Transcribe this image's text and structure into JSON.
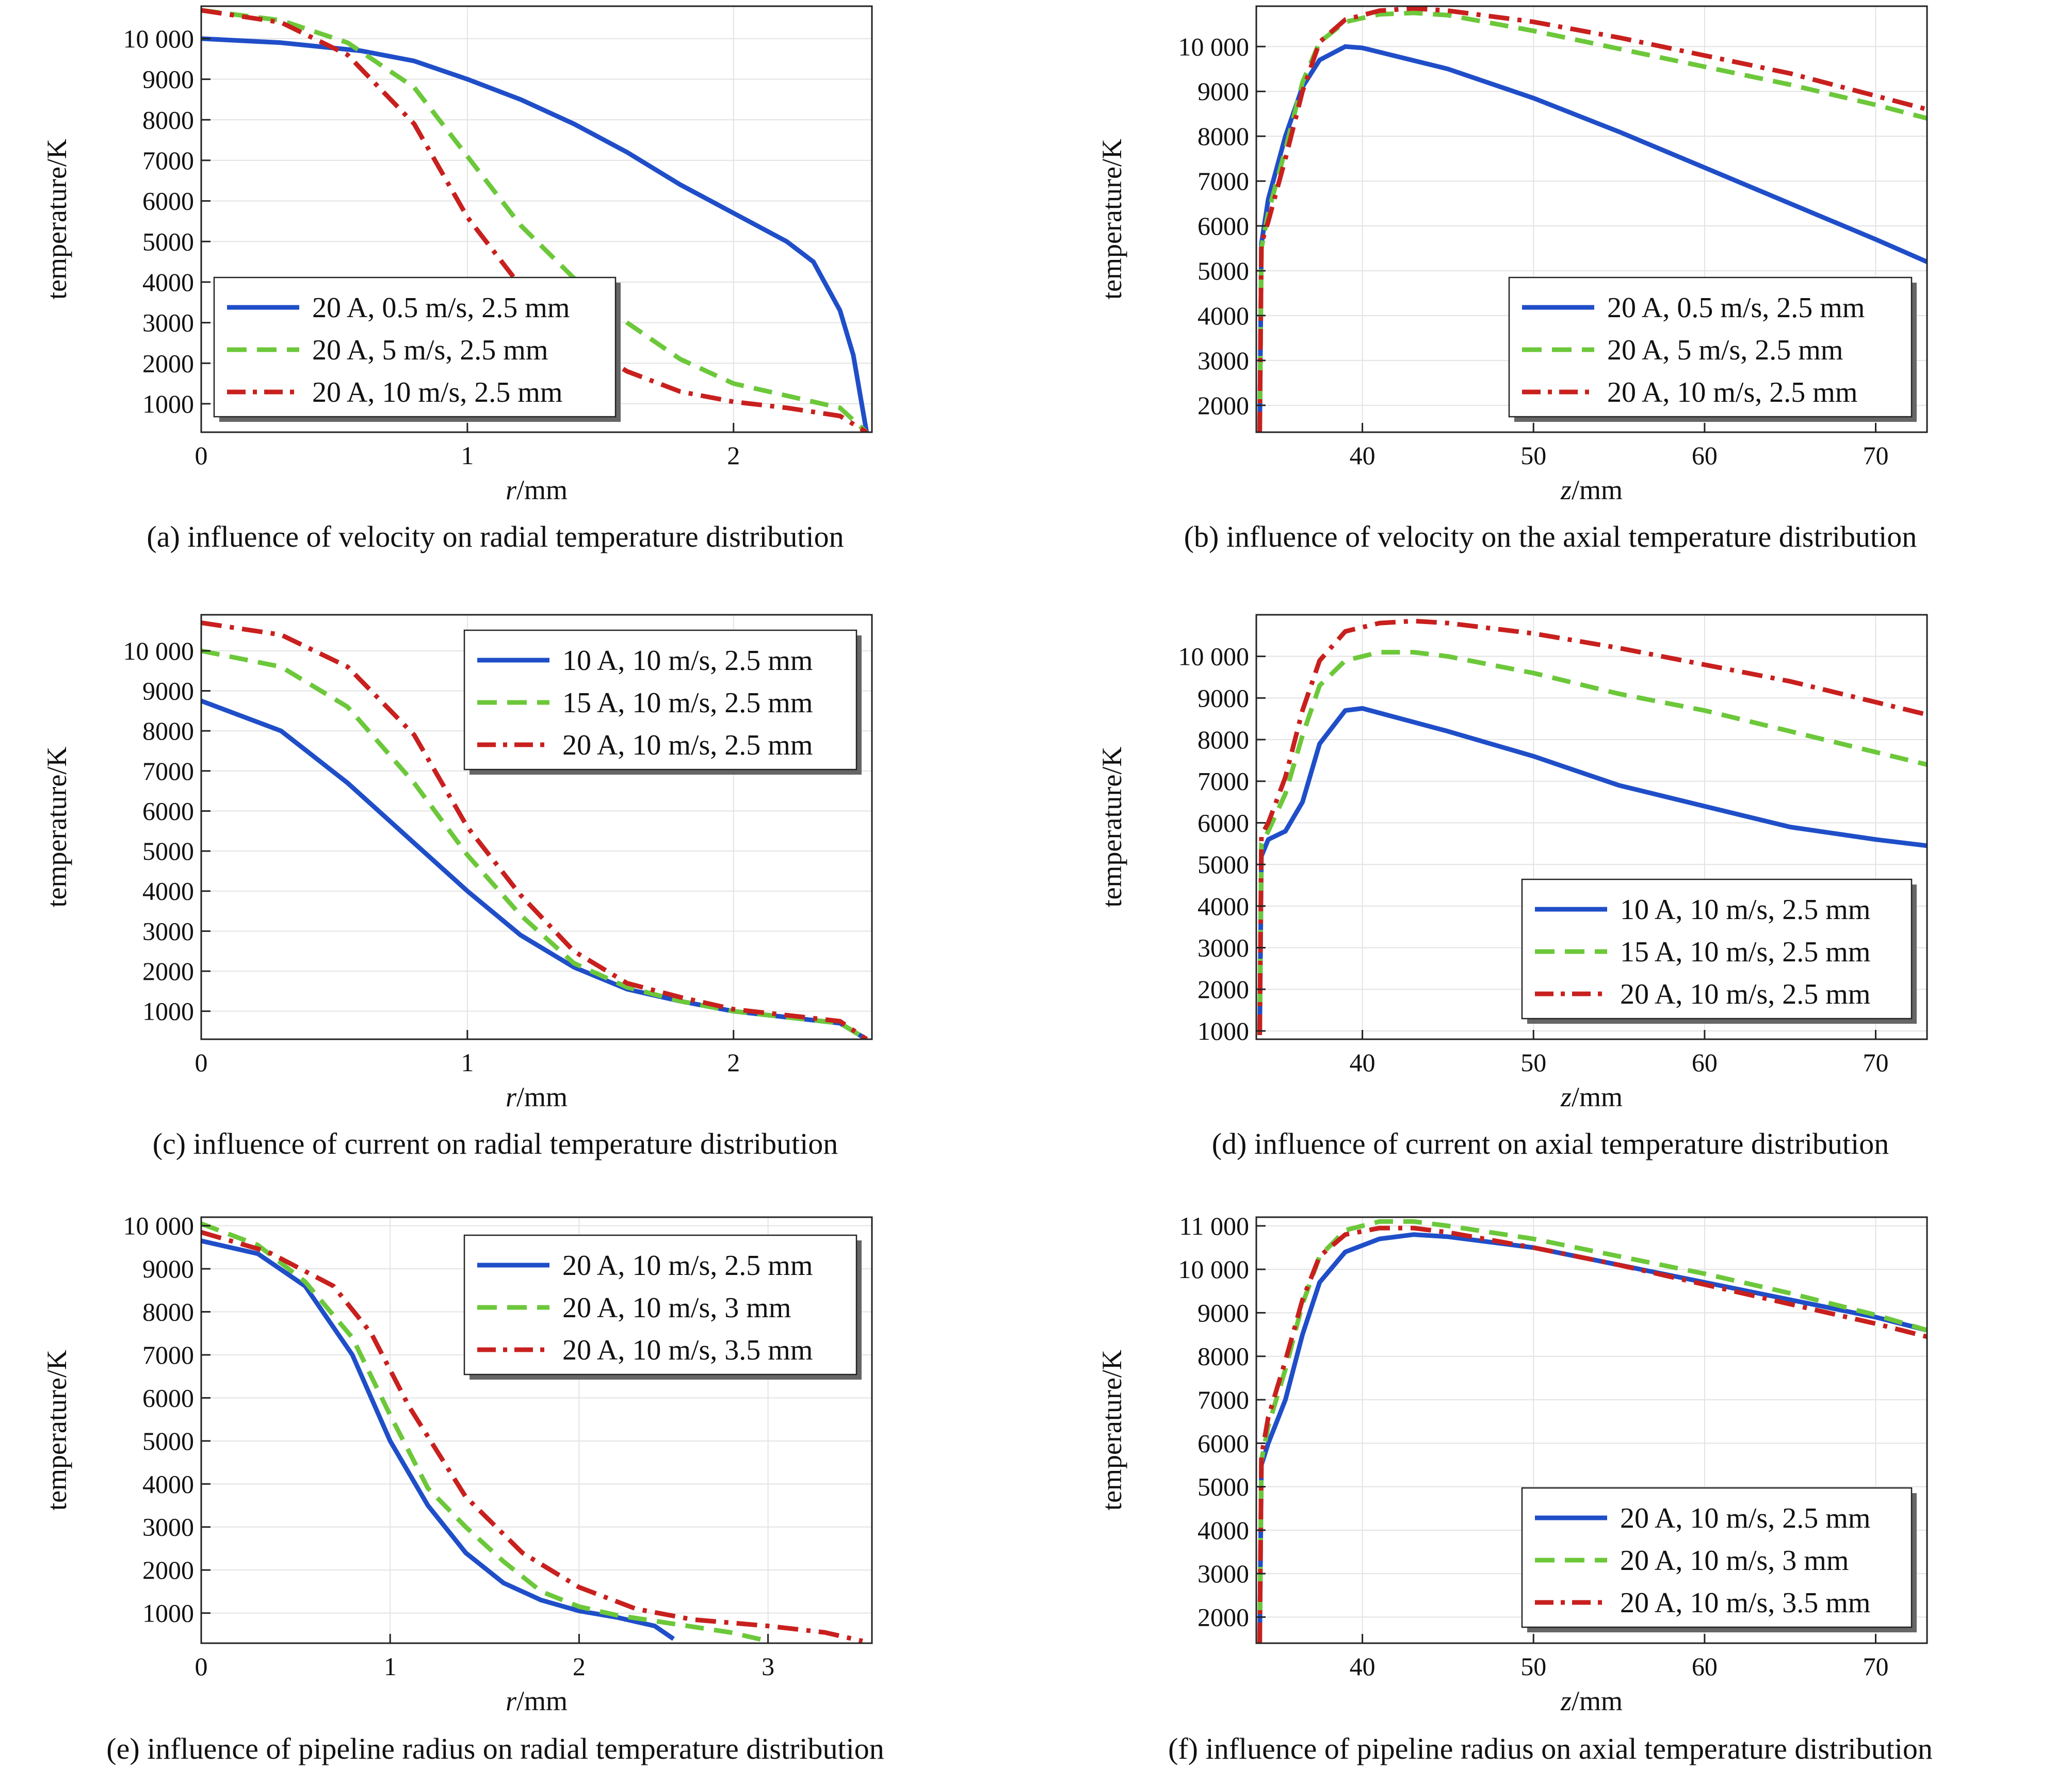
{
  "colors": {
    "blue": "#1f4ec8",
    "green": "#6cc83a",
    "red": "#c8201e"
  },
  "chart_data": [
    {
      "type": "line",
      "caption": "(a) influence of velocity on radial temperature distribution",
      "xlabel_var": "r",
      "xlabel_unit": "/mm",
      "ylabel": "temperature/K",
      "xlim": [
        0,
        2.52
      ],
      "ylim": [
        300,
        10800
      ],
      "xticks": [
        0,
        1,
        2
      ],
      "xtick_labels": [
        "0",
        "1",
        "2"
      ],
      "yticks": [
        1000,
        2000,
        3000,
        4000,
        5000,
        6000,
        7000,
        8000,
        9000,
        10000
      ],
      "ytick_labels": [
        "1000",
        "2000",
        "3000",
        "4000",
        "5000",
        "6000",
        "7000",
        "8000",
        "9000",
        "10 000"
      ],
      "legend_position": "lower-left",
      "series": [
        {
          "name": "20 A, 0.5 m/s, 2.5 mm",
          "color": "blue",
          "style": "solid",
          "x": [
            0,
            0.3,
            0.6,
            0.8,
            1.0,
            1.2,
            1.4,
            1.6,
            1.8,
            2.0,
            2.2,
            2.3,
            2.4,
            2.45,
            2.5
          ],
          "y": [
            10000,
            9900,
            9700,
            9450,
            9000,
            8500,
            7900,
            7200,
            6400,
            5700,
            5000,
            4500,
            3300,
            2200,
            300
          ]
        },
        {
          "name": "20 A, 5 m/s, 2.5 mm",
          "color": "green",
          "style": "dashed",
          "x": [
            0,
            0.3,
            0.55,
            0.8,
            1.0,
            1.2,
            1.4,
            1.6,
            1.8,
            2.0,
            2.2,
            2.4,
            2.5
          ],
          "y": [
            10700,
            10450,
            9900,
            8800,
            7100,
            5400,
            4100,
            3000,
            2100,
            1500,
            1200,
            900,
            300
          ]
        },
        {
          "name": "20 A, 10 m/s, 2.5 mm",
          "color": "red",
          "style": "dashdot",
          "x": [
            0,
            0.3,
            0.55,
            0.8,
            1.0,
            1.2,
            1.4,
            1.6,
            1.8,
            2.0,
            2.2,
            2.4,
            2.5
          ],
          "y": [
            10700,
            10400,
            9600,
            7900,
            5600,
            3900,
            2600,
            1800,
            1300,
            1050,
            900,
            700,
            300
          ]
        }
      ]
    },
    {
      "type": "line",
      "caption": "(b) influence of velocity on the axial temperature distribution",
      "xlabel_var": "z",
      "xlabel_unit": "/mm",
      "ylabel": "temperature/K",
      "xlim": [
        33.8,
        73
      ],
      "ylim": [
        1400,
        10900
      ],
      "xticks": [
        40,
        50,
        60,
        70
      ],
      "xtick_labels": [
        "40",
        "50",
        "60",
        "70"
      ],
      "yticks": [
        2000,
        3000,
        4000,
        5000,
        6000,
        7000,
        8000,
        9000,
        10000
      ],
      "ytick_labels": [
        "2000",
        "3000",
        "4000",
        "5000",
        "6000",
        "7000",
        "8000",
        "9000",
        "10 000"
      ],
      "legend_position": "lower-right",
      "series": [
        {
          "name": "20 A, 0.5 m/s, 2.5 mm",
          "color": "blue",
          "style": "solid",
          "x": [
            34.0,
            34.1,
            34.5,
            35.5,
            36.5,
            37.5,
            39,
            40,
            45,
            50,
            55,
            60,
            65,
            70,
            73
          ],
          "y": [
            1400,
            5600,
            6600,
            8000,
            9100,
            9700,
            10000,
            9970,
            9500,
            8850,
            8100,
            7300,
            6500,
            5700,
            5200
          ]
        },
        {
          "name": "20 A, 5 m/s, 2.5 mm",
          "color": "green",
          "style": "dashed",
          "x": [
            34.0,
            34.1,
            34.5,
            35.5,
            36.5,
            37.5,
            39,
            41,
            43,
            45,
            50,
            55,
            60,
            65,
            70,
            73
          ],
          "y": [
            1400,
            5500,
            6300,
            7700,
            9200,
            10100,
            10550,
            10720,
            10750,
            10700,
            10350,
            9950,
            9550,
            9150,
            8700,
            8400
          ]
        },
        {
          "name": "20 A, 10 m/s, 2.5 mm",
          "color": "red",
          "style": "dashdot",
          "x": [
            34.0,
            34.1,
            34.5,
            35.5,
            36.5,
            37.5,
            39,
            41,
            43,
            45,
            50,
            55,
            60,
            65,
            70,
            73
          ],
          "y": [
            1400,
            5600,
            6100,
            7500,
            9000,
            10100,
            10600,
            10800,
            10850,
            10800,
            10550,
            10200,
            9800,
            9400,
            8900,
            8600
          ]
        }
      ]
    },
    {
      "type": "line",
      "caption": "(c) influence of current on radial temperature distribution",
      "xlabel_var": "r",
      "xlabel_unit": "/mm",
      "ylabel": "temperature/K",
      "xlim": [
        0,
        2.52
      ],
      "ylim": [
        300,
        10900
      ],
      "xticks": [
        0,
        1,
        2
      ],
      "xtick_labels": [
        "0",
        "1",
        "2"
      ],
      "yticks": [
        1000,
        2000,
        3000,
        4000,
        5000,
        6000,
        7000,
        8000,
        9000,
        10000
      ],
      "ytick_labels": [
        "1000",
        "2000",
        "3000",
        "4000",
        "5000",
        "6000",
        "7000",
        "8000",
        "9000",
        "10 000"
      ],
      "legend_position": "top-right",
      "series": [
        {
          "name": "10 A, 10 m/s, 2.5 mm",
          "color": "blue",
          "style": "solid",
          "x": [
            0,
            0.3,
            0.55,
            0.8,
            1.0,
            1.2,
            1.4,
            1.6,
            1.8,
            2.0,
            2.2,
            2.4,
            2.5
          ],
          "y": [
            8750,
            8000,
            6700,
            5200,
            4000,
            2900,
            2100,
            1550,
            1250,
            1000,
            850,
            700,
            300
          ]
        },
        {
          "name": "15 A, 10 m/s, 2.5 mm",
          "color": "green",
          "style": "dashed",
          "x": [
            0,
            0.3,
            0.55,
            0.8,
            1.0,
            1.2,
            1.4,
            1.6,
            1.8,
            2.0,
            2.2,
            2.4,
            2.5
          ],
          "y": [
            10000,
            9600,
            8600,
            6700,
            4900,
            3400,
            2200,
            1600,
            1250,
            1000,
            850,
            700,
            300
          ]
        },
        {
          "name": "20 A, 10 m/s, 2.5 mm",
          "color": "red",
          "style": "dashdot",
          "x": [
            0,
            0.3,
            0.55,
            0.8,
            1.0,
            1.2,
            1.4,
            1.6,
            1.8,
            2.0,
            2.2,
            2.4,
            2.5
          ],
          "y": [
            10700,
            10400,
            9600,
            7900,
            5600,
            3900,
            2500,
            1700,
            1350,
            1050,
            900,
            750,
            300
          ]
        }
      ]
    },
    {
      "type": "line",
      "caption": "(d) influence of current on axial temperature distribution",
      "xlabel_var": "z",
      "xlabel_unit": "/mm",
      "ylabel": "temperature/K",
      "xlim": [
        33.8,
        73
      ],
      "ylim": [
        800,
        11000
      ],
      "xticks": [
        40,
        50,
        60,
        70
      ],
      "xtick_labels": [
        "40",
        "50",
        "60",
        "70"
      ],
      "yticks": [
        1000,
        2000,
        3000,
        4000,
        5000,
        6000,
        7000,
        8000,
        9000,
        10000
      ],
      "ytick_labels": [
        "1000",
        "2000",
        "3000",
        "4000",
        "5000",
        "6000",
        "7000",
        "8000",
        "9000",
        "10 000"
      ],
      "legend_position": "lower-right",
      "series": [
        {
          "name": "10 A, 10 m/s, 2.5 mm",
          "color": "blue",
          "style": "solid",
          "x": [
            34.0,
            34.1,
            34.5,
            35.5,
            36.5,
            37.5,
            39,
            40,
            45,
            50,
            55,
            60,
            65,
            70,
            73
          ],
          "y": [
            900,
            5200,
            5600,
            5800,
            6500,
            7900,
            8700,
            8750,
            8200,
            7600,
            6900,
            6400,
            5900,
            5600,
            5450
          ]
        },
        {
          "name": "15 A, 10 m/s, 2.5 mm",
          "color": "green",
          "style": "dashed",
          "x": [
            34.0,
            34.1,
            34.5,
            35.5,
            36.5,
            37.5,
            39,
            41,
            43,
            45,
            50,
            55,
            60,
            65,
            70,
            73
          ],
          "y": [
            900,
            5500,
            5800,
            6700,
            8100,
            9300,
            9900,
            10100,
            10100,
            10000,
            9600,
            9100,
            8700,
            8200,
            7700,
            7400
          ]
        },
        {
          "name": "20 A, 10 m/s, 2.5 mm",
          "color": "red",
          "style": "dashdot",
          "x": [
            34.0,
            34.1,
            34.5,
            35.5,
            36.5,
            37.5,
            39,
            41,
            43,
            45,
            50,
            55,
            60,
            65,
            70,
            73
          ],
          "y": [
            900,
            5700,
            6000,
            7100,
            8700,
            9900,
            10600,
            10800,
            10850,
            10800,
            10550,
            10200,
            9800,
            9400,
            8900,
            8600
          ]
        }
      ]
    },
    {
      "type": "line",
      "caption": "(e) influence of pipeline radius on radial temperature distribution",
      "xlabel_var": "r",
      "xlabel_unit": "/mm",
      "ylabel": "temperature/K",
      "xlim": [
        0,
        3.55
      ],
      "ylim": [
        300,
        10200
      ],
      "xticks": [
        0,
        1,
        2,
        3
      ],
      "xtick_labels": [
        "0",
        "1",
        "2",
        "3"
      ],
      "yticks": [
        1000,
        2000,
        3000,
        4000,
        5000,
        6000,
        7000,
        8000,
        9000,
        10000
      ],
      "ytick_labels": [
        "1000",
        "2000",
        "3000",
        "4000",
        "5000",
        "6000",
        "7000",
        "8000",
        "9000",
        "10 000"
      ],
      "legend_position": "top-right",
      "series": [
        {
          "name": "20 A, 10 m/s, 2.5 mm",
          "color": "blue",
          "style": "solid",
          "x": [
            0,
            0.3,
            0.55,
            0.8,
            1.0,
            1.2,
            1.4,
            1.6,
            1.8,
            2.0,
            2.2,
            2.4,
            2.5
          ],
          "y": [
            9650,
            9350,
            8600,
            7000,
            5000,
            3500,
            2400,
            1700,
            1300,
            1050,
            900,
            700,
            400
          ]
        },
        {
          "name": "20 A, 10 m/s, 3 mm",
          "color": "green",
          "style": "dashed",
          "x": [
            0,
            0.3,
            0.55,
            0.8,
            1.0,
            1.2,
            1.4,
            1.6,
            1.8,
            2.0,
            2.2,
            2.5,
            2.8,
            3.0
          ],
          "y": [
            10050,
            9550,
            8700,
            7400,
            5600,
            3900,
            3000,
            2200,
            1500,
            1150,
            950,
            750,
            550,
            350
          ]
        },
        {
          "name": "20 A, 10 m/s, 3.5 mm",
          "color": "red",
          "style": "dashdot",
          "x": [
            0,
            0.35,
            0.7,
            0.9,
            1.1,
            1.4,
            1.7,
            2.0,
            2.3,
            2.6,
            3.0,
            3.3,
            3.5
          ],
          "y": [
            9850,
            9400,
            8600,
            7500,
            5800,
            3700,
            2400,
            1600,
            1100,
            850,
            700,
            550,
            350
          ]
        }
      ]
    },
    {
      "type": "line",
      "caption": "(f) influence of pipeline radius on axial temperature distribution",
      "xlabel_var": "z",
      "xlabel_unit": "/mm",
      "ylabel": "temperature/K",
      "xlim": [
        33.8,
        73
      ],
      "ylim": [
        1400,
        11200
      ],
      "xticks": [
        40,
        50,
        60,
        70
      ],
      "xtick_labels": [
        "40",
        "50",
        "60",
        "70"
      ],
      "yticks": [
        2000,
        3000,
        4000,
        5000,
        6000,
        7000,
        8000,
        9000,
        10000,
        11000
      ],
      "ytick_labels": [
        "2000",
        "3000",
        "4000",
        "5000",
        "6000",
        "7000",
        "8000",
        "9000",
        "10 000",
        "11 000"
      ],
      "legend_position": "lower-right",
      "series": [
        {
          "name": "20 A, 10 m/s, 2.5 mm",
          "color": "blue",
          "style": "solid",
          "x": [
            34.0,
            34.1,
            34.5,
            35.5,
            36.5,
            37.5,
            39,
            41,
            43,
            45,
            50,
            55,
            60,
            65,
            70,
            73
          ],
          "y": [
            1400,
            5500,
            6000,
            7000,
            8500,
            9700,
            10400,
            10700,
            10800,
            10750,
            10500,
            10100,
            9700,
            9300,
            8900,
            8600
          ]
        },
        {
          "name": "20 A, 10 m/s, 3 mm",
          "color": "green",
          "style": "dashed",
          "x": [
            34.0,
            34.1,
            34.5,
            35.5,
            36.5,
            37.5,
            39,
            41,
            43,
            45,
            50,
            55,
            60,
            65,
            70,
            73
          ],
          "y": [
            1400,
            5600,
            6400,
            7700,
            9200,
            10300,
            10900,
            11100,
            11100,
            11000,
            10700,
            10300,
            9900,
            9450,
            8950,
            8600
          ]
        },
        {
          "name": "20 A, 10 m/s, 3.5 mm",
          "color": "red",
          "style": "dashdot",
          "x": [
            34.0,
            34.1,
            34.5,
            35.5,
            36.5,
            37.5,
            39,
            41,
            43,
            45,
            50,
            55,
            60,
            65,
            70,
            73
          ],
          "y": [
            1400,
            5700,
            6600,
            7900,
            9300,
            10300,
            10800,
            10950,
            10950,
            10850,
            10500,
            10100,
            9650,
            9200,
            8750,
            8450
          ]
        }
      ]
    }
  ]
}
